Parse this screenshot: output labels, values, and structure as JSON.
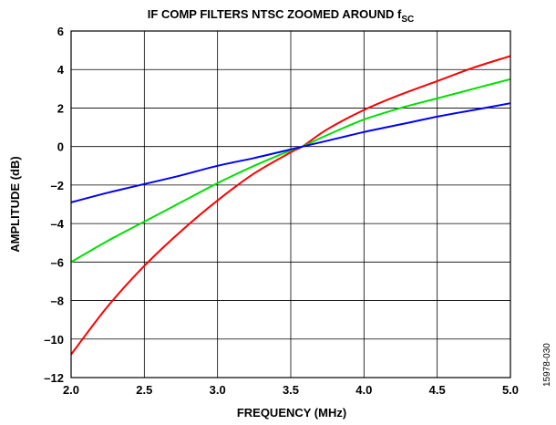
{
  "chart_data": {
    "type": "line",
    "title_main": "IF COMP FILTERS NTSC ZOOMED AROUND f",
    "title_sub": "SC",
    "xlabel": "FREQUENCY (MHz)",
    "ylabel": "AMPLITUDE (dB)",
    "xlim": [
      2.0,
      5.0
    ],
    "ylim": [
      -12,
      6
    ],
    "x_ticks": [
      "2.0",
      "2.5",
      "3.0",
      "3.5",
      "4.0",
      "4.5",
      "5.0"
    ],
    "y_ticks": [
      "6",
      "4",
      "2",
      "0",
      "–2",
      "–4",
      "–6",
      "–8",
      "–10",
      "–12"
    ],
    "grid": true,
    "x": [
      2.0,
      2.25,
      2.5,
      2.75,
      3.0,
      3.25,
      3.5,
      3.58,
      3.75,
      4.0,
      4.25,
      4.5,
      4.75,
      5.0
    ],
    "series": [
      {
        "color": "#ff0000",
        "values": [
          -10.8,
          -8.3,
          -6.2,
          -4.4,
          -2.8,
          -1.4,
          -0.3,
          0.0,
          0.9,
          1.9,
          2.7,
          3.4,
          4.1,
          4.7
        ]
      },
      {
        "color": "#00e000",
        "values": [
          -6.0,
          -4.9,
          -3.9,
          -2.9,
          -1.9,
          -1.0,
          -0.2,
          0.0,
          0.6,
          1.4,
          2.0,
          2.5,
          3.0,
          3.5
        ]
      },
      {
        "color": "#0000ff",
        "values": [
          -2.9,
          -2.4,
          -1.95,
          -1.5,
          -1.0,
          -0.6,
          -0.15,
          0.0,
          0.3,
          0.75,
          1.15,
          1.55,
          1.9,
          2.25
        ]
      }
    ]
  },
  "figure_id": "15978-030"
}
